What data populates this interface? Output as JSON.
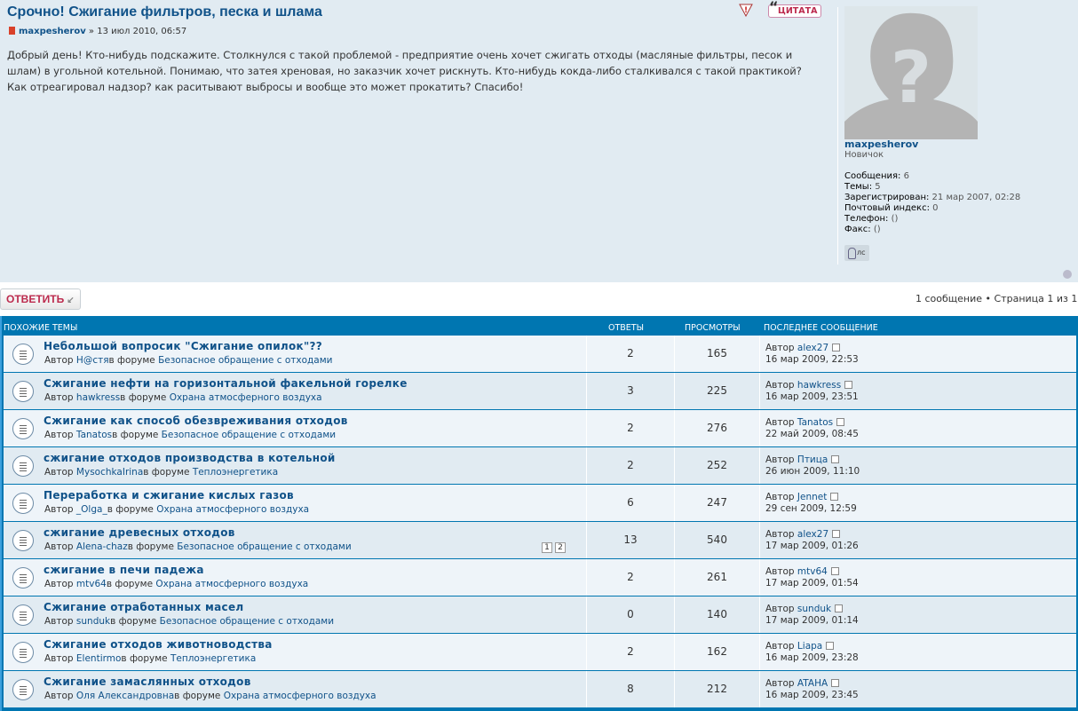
{
  "post": {
    "title": "Срочно! Сжигание фильтров, песка и шлама",
    "author": "maxpesherov",
    "date_sep": " » ",
    "date": "13 июл 2010, 06:57",
    "content": "Добрый день! Кто-нибудь подскажите. Столкнулся с такой проблемой - предприятие очень хочет сжигать отходы (масляные фильтры, песок и шлам) в угольной котельной. Понимаю, что затея хреновая, но заказчик хочет рискнуть. Кто-нибудь кокда-либо сталкивался с такой практикой? Как отреагировал надзор? как раситывают выбросы и вообще это может прокатить? Спасибо!",
    "quote_label": "ЦИТАТА"
  },
  "profile": {
    "username": "maxpesherov",
    "rank": "Новичок",
    "fields": [
      {
        "label": "Сообщения:",
        "value": "6"
      },
      {
        "label": "Темы:",
        "value": "5"
      },
      {
        "label": "Зарегистрирован:",
        "value": "21 мар 2007, 02:28"
      },
      {
        "label": "Почтовый индекс:",
        "value": "0"
      },
      {
        "label": "Телефон:",
        "value": "()"
      },
      {
        "label": "Факс:",
        "value": "()"
      }
    ],
    "pm_label": "лс"
  },
  "actions": {
    "reply_label": "ОТВЕТИТЬ",
    "pagination": "1 сообщение • Страница 1 из 1"
  },
  "similar": {
    "headers": {
      "topics": "ПОХОЖИЕ ТЕМЫ",
      "replies": "ОТВЕТЫ",
      "views": "ПРОСМОТРЫ",
      "last": "ПОСЛЕДНЕЕ СООБЩЕНИЕ"
    },
    "rows": [
      {
        "title": "Небольшой вопросик \"Сжигание опилок\"??",
        "by": "Автор ",
        "author": "H@стя",
        "in": "в форуме ",
        "forum": "Безопасное обращение с отходами",
        "replies": "2",
        "views": "165",
        "last_by": "Автор ",
        "last_author": "alex27",
        "last_date": "16 мар 2009, 22:53"
      },
      {
        "title": "Сжигание нефти на горизонтальной факельной горелке",
        "by": "Автор ",
        "author": "hawkress",
        "in": "в форуме ",
        "forum": "Охрана атмосферного воздуха",
        "replies": "3",
        "views": "225",
        "last_by": "Автор ",
        "last_author": "hawkress",
        "last_date": "16 мар 2009, 23:51"
      },
      {
        "title": "Сжигание как способ обезвреживания отходов",
        "by": "Автор ",
        "author": "Tanatos",
        "in": "в форуме ",
        "forum": "Безопасное обращение с отходами",
        "replies": "2",
        "views": "276",
        "last_by": "Автор ",
        "last_author": "Tanatos",
        "last_date": "22 май 2009, 08:45"
      },
      {
        "title": "сжигание отходов производства в котельной",
        "by": "Автор ",
        "author": "MysochkaIrina",
        "in": "в форуме ",
        "forum": "Теплоэнергетика",
        "replies": "2",
        "views": "252",
        "last_by": "Автор ",
        "last_author": "Птица",
        "last_date": "26 июн 2009, 11:10"
      },
      {
        "title": "Переработка и сжигание кислых газов",
        "by": "Автор ",
        "author": "_Olga_",
        "in": "в форуме ",
        "forum": "Охрана атмосферного воздуха",
        "replies": "6",
        "views": "247",
        "last_by": "Автор ",
        "last_author": "Jennet",
        "last_date": "29 сен 2009, 12:59"
      },
      {
        "title": "сжигание древесных отходов",
        "by": "Автор ",
        "author": "Alena-chaz",
        "in": "в форуме ",
        "forum": "Безопасное обращение с отходами",
        "replies": "13",
        "views": "540",
        "last_by": "Автор ",
        "last_author": "alex27",
        "last_date": "17 мар 2009, 01:26",
        "pages": [
          "1",
          "2"
        ]
      },
      {
        "title": "сжигание в печи падежа",
        "by": "Автор ",
        "author": "mtv64",
        "in": "в форуме ",
        "forum": "Охрана атмосферного воздуха",
        "replies": "2",
        "views": "261",
        "last_by": "Автор ",
        "last_author": "mtv64",
        "last_date": "17 мар 2009, 01:54"
      },
      {
        "title": "Сжигание отработанных масел",
        "by": "Автор ",
        "author": "sunduk",
        "in": "в форуме ",
        "forum": "Безопасное обращение с отходами",
        "replies": "0",
        "views": "140",
        "last_by": "Автор ",
        "last_author": "sunduk",
        "last_date": "17 мар 2009, 01:14"
      },
      {
        "title": "Сжигание отходов животноводства",
        "by": "Автор ",
        "author": "Elentirmo",
        "in": "в форуме ",
        "forum": "Теплоэнергетика",
        "replies": "2",
        "views": "162",
        "last_by": "Автор ",
        "last_author": "Liapa",
        "last_date": "16 мар 2009, 23:28"
      },
      {
        "title": "Сжигание замаслянных отходов",
        "by": "Автор ",
        "author": "Оля Александровна",
        "in": "в форуме ",
        "forum": "Охрана атмосферного воздуха",
        "replies": "8",
        "views": "212",
        "last_by": "Автор ",
        "last_author": "ATAHA",
        "last_date": "16 мар 2009, 23:45"
      }
    ]
  }
}
